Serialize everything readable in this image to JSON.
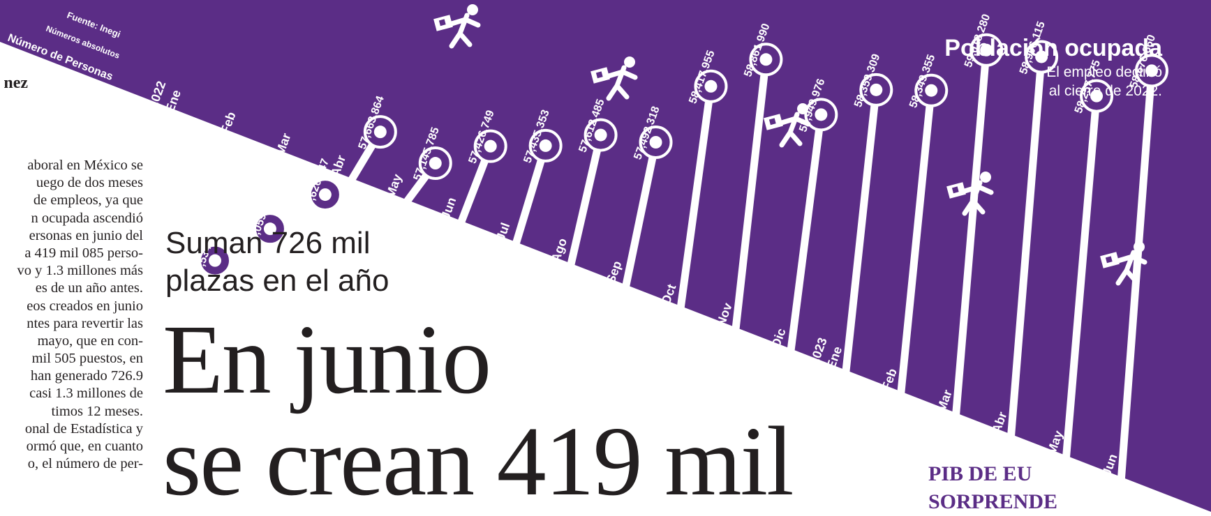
{
  "header": {
    "title": "Población ocupada",
    "subtitle": "El empleo declinó al cierre de 2022."
  },
  "meta": {
    "source": "Fuente: Inegi",
    "units": "Números absolutos",
    "label": "Número de Personas"
  },
  "article": {
    "byline": "nez",
    "kicker": "Suman 726 mil plazas en el año",
    "headline_line1": "En junio",
    "headline_line2": "se crean 419 mil",
    "body_lines": [
      "aboral en México se",
      "uego de dos meses",
      "de empleos, ya que",
      "n ocupada ascendió",
      "ersonas en junio del",
      "a 419 mil 085 perso-",
      "vo y 1.3 millones más",
      "es de un año antes.",
      "eos creados en junio",
      "ntes para revertir las",
      "mayo, que en con-",
      "mil 505 puestos, en",
      "han generado 726.9",
      "casi 1.3 millones de",
      "timos 12 meses.",
      "onal de Estadística y",
      "ormó que, en cuanto",
      "o, el número de per-"
    ]
  },
  "teaser": {
    "line1": "PIB DE EU",
    "line2": "SORPRENDE"
  },
  "colors": {
    "band": "#5b2d86",
    "stem": "#ffffff",
    "text_dark": "#231f20"
  },
  "chart_data": {
    "type": "line",
    "title": "Población ocupada",
    "ylabel": "Número de Personas",
    "icon": "running-worker-icon",
    "years": [
      "2022",
      "2023"
    ],
    "categories": [
      "Ene",
      "Feb",
      "Mar",
      "Abr",
      "May",
      "Jun",
      "Jul",
      "Ago",
      "Sep",
      "Oct",
      "Nov",
      "Dic",
      "Ene",
      "Feb",
      "Mar",
      "Abr",
      "May",
      "Jun"
    ],
    "values": [
      55534882,
      56059543,
      56626047,
      57663864,
      57145785,
      57426749,
      57435353,
      57612485,
      57492318,
      58417955,
      58861990,
      57949976,
      58359309,
      58349355,
      59018280,
      58906115,
      58257775,
      58676860
    ],
    "value_labels": [
      "55,534,882",
      "56,059,543",
      "56,626,047",
      "57,663,864",
      "57,145,785",
      "57,426,749",
      "57,435,353",
      "57,612,485",
      "57,492,318",
      "58,417,955",
      "58,861,990",
      "57,949,976",
      "58,359,309",
      "58,349,355",
      "59,018,280",
      "58,906,115",
      "58,257,775",
      "58,676,860"
    ],
    "ylim": [
      55000000,
      59500000
    ]
  }
}
